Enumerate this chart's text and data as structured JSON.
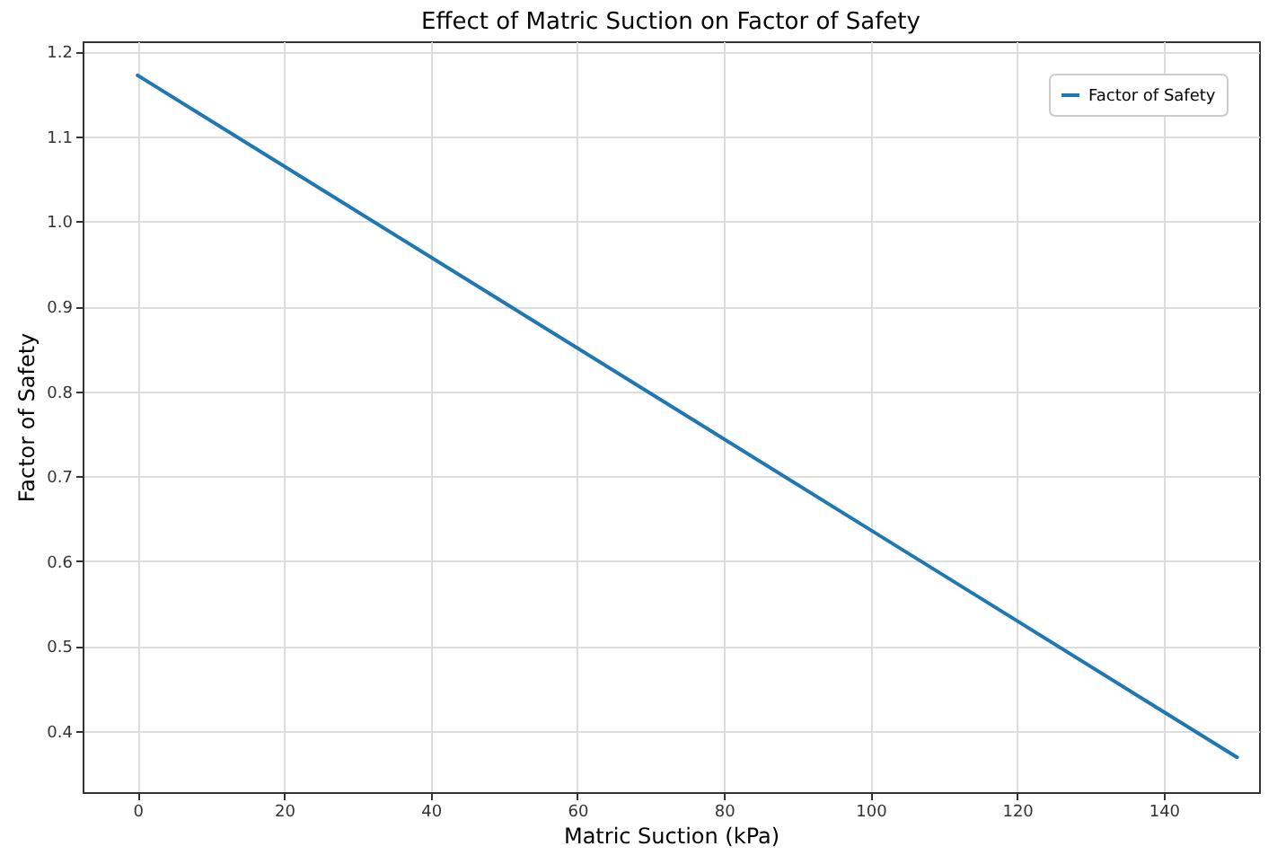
{
  "chart_data": {
    "type": "line",
    "title": "Effect of Matric Suction on Factor of Safety",
    "xlabel": "Matric Suction (kPa)",
    "ylabel": "Factor of Safety",
    "x": [
      0,
      150
    ],
    "series": [
      {
        "name": "Factor of Safety",
        "color": "#1f77b4",
        "values": [
          1.172,
          0.369
        ]
      }
    ],
    "xlim": [
      -7.5,
      153
    ],
    "xticks": [
      0,
      20,
      40,
      60,
      80,
      100,
      120,
      140
    ],
    "ylim": [
      0.328,
      1.212
    ],
    "yticks": [
      0.4,
      0.5,
      0.6,
      0.7,
      0.8,
      0.9,
      {
        "value": 1,
        "label": "1.0"
      },
      1.1,
      1.2
    ],
    "grid": true,
    "legend": "top right",
    "marker": "none",
    "line_style": "solid"
  }
}
